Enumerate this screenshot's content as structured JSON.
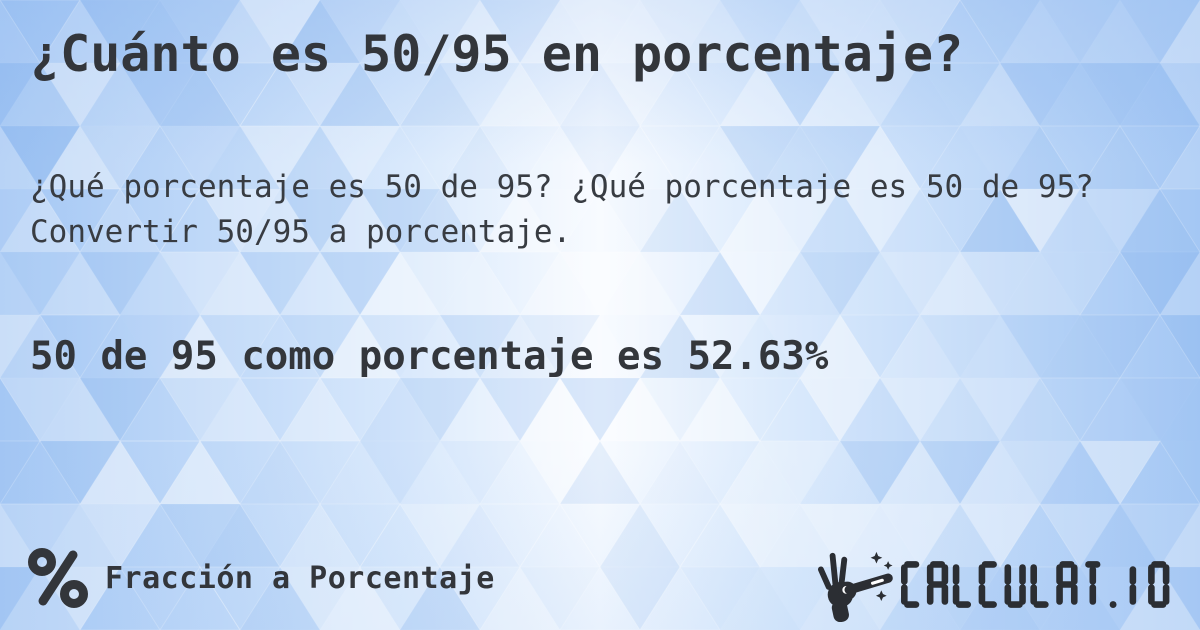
{
  "page": {
    "title": "¿Cuánto es 50/95 en porcentaje?",
    "description": "¿Qué porcentaje es 50 de 95? ¿Qué porcentaje es 50 de 95? Convertir 50/95 a porcentaje.",
    "answer": "50 de 95 como porcentaje es 52.63%"
  },
  "footer": {
    "category": {
      "icon": "percent-icon",
      "label": "Fracción a Porcentaje"
    },
    "brand": {
      "icon": "magic-wand-hand-icon",
      "wordmark": "CALCULAT.IO"
    }
  },
  "colors": {
    "text_dark": "#33363b",
    "logo_dark": "#2b2e33",
    "background_blue": "#a4c7f4",
    "background_light": "#ffffff",
    "mosaic_accent_blue": "#6ea3e8"
  }
}
